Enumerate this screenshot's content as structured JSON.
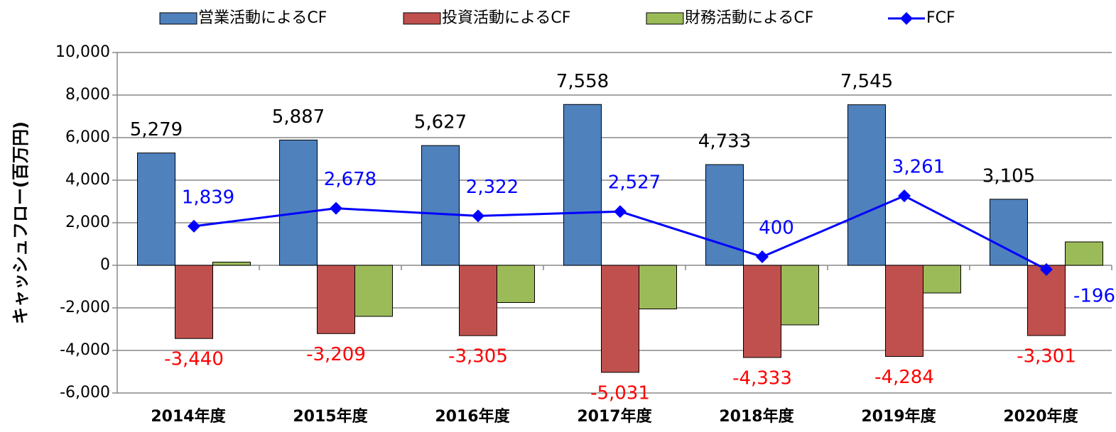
{
  "chart_data": {
    "type": "bar_line",
    "y_label": "キャッシュフロー(百万円)",
    "categories": [
      "2014年度",
      "2015年度",
      "2016年度",
      "2017年度",
      "2018年度",
      "2019年度",
      "2020年度"
    ],
    "series": [
      {
        "name": "営業活動によるCF",
        "type": "bar",
        "color": "#4f81bd",
        "values": [
          5279,
          5887,
          5627,
          7558,
          4733,
          7545,
          3105
        ],
        "value_labels": [
          "5,279",
          "5,887",
          "5,627",
          "7,558",
          "4,733",
          "7,545",
          "3,105"
        ],
        "label_color": "#000000"
      },
      {
        "name": "投資活動によるCF",
        "type": "bar",
        "color": "#c0504d",
        "values": [
          -3440,
          -3209,
          -3305,
          -5031,
          -4333,
          -4284,
          -3301
        ],
        "value_labels": [
          "-3,440",
          "-3,209",
          "-3,305",
          "-5,031",
          "-4,333",
          "-4,284",
          "-3,301"
        ],
        "label_color": "#ff0000"
      },
      {
        "name": "財務活動によるCF",
        "type": "bar",
        "color": "#9bbb59",
        "values": [
          150,
          -2400,
          -1750,
          -2050,
          -2800,
          -1300,
          1100
        ]
      },
      {
        "name": "FCF",
        "type": "line",
        "color": "#0000ff",
        "values": [
          1839,
          2678,
          2322,
          2527,
          400,
          3261,
          -196
        ],
        "value_labels": [
          "1,839",
          "2,678",
          "2,322",
          "2,527",
          "400",
          "3,261",
          "-196"
        ],
        "label_color": "#0000ff"
      }
    ],
    "ylim": [
      -6000,
      10000
    ],
    "yticks": [
      {
        "value": -6000,
        "label": "-6,000"
      },
      {
        "value": -4000,
        "label": "-4,000"
      },
      {
        "value": -2000,
        "label": "-2,000"
      },
      0,
      {
        "value": 2000,
        "label": "2,000"
      },
      {
        "value": 4000,
        "label": "4,000"
      },
      {
        "value": 6000,
        "label": "6,000"
      },
      {
        "value": 8000,
        "label": "8,000"
      },
      {
        "value": 10000,
        "label": "10,000"
      }
    ],
    "grid": true
  }
}
